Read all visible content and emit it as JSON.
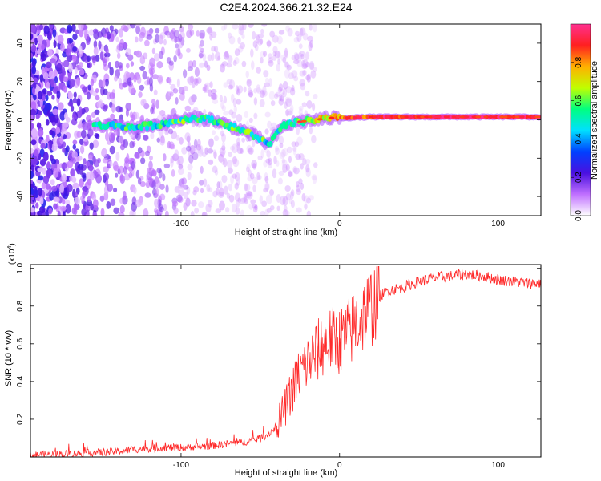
{
  "title": "C2E4.2024.366.21.32.E24",
  "chart_data": [
    {
      "type": "heatmap",
      "xlabel": "Height of straight line (km)",
      "ylabel": "Frequency (Hz)",
      "xlim": [
        -195,
        127
      ],
      "ylim": [
        -50,
        50
      ],
      "xticks": [
        -100,
        0,
        100
      ],
      "yticks": [
        -40,
        -20,
        0,
        20,
        40
      ],
      "xtick_labels": [
        "-100",
        "0",
        "100"
      ],
      "ytick_labels": [
        "-40",
        "-20",
        "0",
        "20",
        "40"
      ],
      "colorbar": {
        "label": "Normalized spectral amplitude",
        "range": [
          0,
          1
        ],
        "ticks": [
          0.0,
          0.2,
          0.4,
          0.6,
          0.8
        ],
        "tick_labels": [
          "0.0",
          "0.2",
          "0.4",
          "0.6",
          "0.8"
        ],
        "colormap": [
          "#ffffff",
          "#c070ff",
          "#4a10e0",
          "#0040ff",
          "#00e0ff",
          "#00ff80",
          "#c0ff00",
          "#ffb000",
          "#ff2020",
          "#ff3090"
        ]
      },
      "signal_track": [
        {
          "x": -150,
          "freq": -3,
          "amp": 0.45
        },
        {
          "x": -140,
          "freq": -3,
          "amp": 0.5
        },
        {
          "x": -130,
          "freq": -4,
          "amp": 0.5
        },
        {
          "x": -120,
          "freq": -3,
          "amp": 0.5
        },
        {
          "x": -110,
          "freq": -2,
          "amp": 0.5
        },
        {
          "x": -100,
          "freq": 0,
          "amp": 0.55
        },
        {
          "x": -90,
          "freq": 1,
          "amp": 0.55
        },
        {
          "x": -80,
          "freq": 0,
          "amp": 0.5
        },
        {
          "x": -70,
          "freq": -3,
          "amp": 0.55
        },
        {
          "x": -60,
          "freq": -6,
          "amp": 0.55
        },
        {
          "x": -50,
          "freq": -10,
          "amp": 0.55
        },
        {
          "x": -45,
          "freq": -13,
          "amp": 0.5
        },
        {
          "x": -40,
          "freq": -8,
          "amp": 0.5
        },
        {
          "x": -35,
          "freq": -3,
          "amp": 0.55
        },
        {
          "x": -25,
          "freq": -1,
          "amp": 0.6
        },
        {
          "x": -15,
          "freq": 0,
          "amp": 0.7
        },
        {
          "x": -5,
          "freq": 1,
          "amp": 0.75
        },
        {
          "x": 5,
          "freq": 1,
          "amp": 0.85
        },
        {
          "x": 20,
          "freq": 1.5,
          "amp": 0.9
        },
        {
          "x": 40,
          "freq": 1.5,
          "amp": 0.95
        },
        {
          "x": 60,
          "freq": 1.5,
          "amp": 1.0
        },
        {
          "x": 80,
          "freq": 1.5,
          "amp": 1.0
        },
        {
          "x": 100,
          "freq": 1.5,
          "amp": 1.0
        },
        {
          "x": 127,
          "freq": 1.5,
          "amp": 1.0
        }
      ]
    },
    {
      "type": "line",
      "xlabel": "Height of straight line (km)",
      "ylabel": "SNR (10 * v/v)",
      "y_multiplier_base": "(x10",
      "y_multiplier_exp": "4",
      "y_multiplier_close": ")",
      "xlim": [
        -195,
        127
      ],
      "ylim": [
        0,
        1.02
      ],
      "xticks": [
        -100,
        0,
        100
      ],
      "yticks": [
        0.2,
        0.4,
        0.6,
        0.8,
        1.0
      ],
      "xtick_labels": [
        "-100",
        "0",
        "100"
      ],
      "ytick_labels": [
        "0.2",
        "0.4",
        "0.6",
        "0.8",
        "1.0"
      ],
      "color": "#ff2a2a",
      "series": [
        {
          "x": [
            -195,
            -180,
            -160,
            -140,
            -130,
            -120,
            -110,
            -100,
            -90,
            -80,
            -70,
            -60,
            -50,
            -45,
            -40,
            -35,
            -30,
            -25,
            -20,
            -15,
            -10,
            -5,
            0,
            5,
            10,
            15,
            20,
            25,
            30,
            40,
            50,
            60,
            70,
            80,
            90,
            100,
            110,
            120,
            127
          ],
          "y": [
            0.01,
            0.015,
            0.02,
            0.03,
            0.04,
            0.045,
            0.05,
            0.05,
            0.055,
            0.06,
            0.07,
            0.08,
            0.1,
            0.12,
            0.16,
            0.25,
            0.35,
            0.45,
            0.5,
            0.55,
            0.6,
            0.62,
            0.62,
            0.65,
            0.7,
            0.75,
            0.8,
            0.85,
            0.88,
            0.9,
            0.93,
            0.95,
            0.96,
            0.97,
            0.96,
            0.94,
            0.93,
            0.92,
            0.92
          ]
        }
      ]
    }
  ]
}
